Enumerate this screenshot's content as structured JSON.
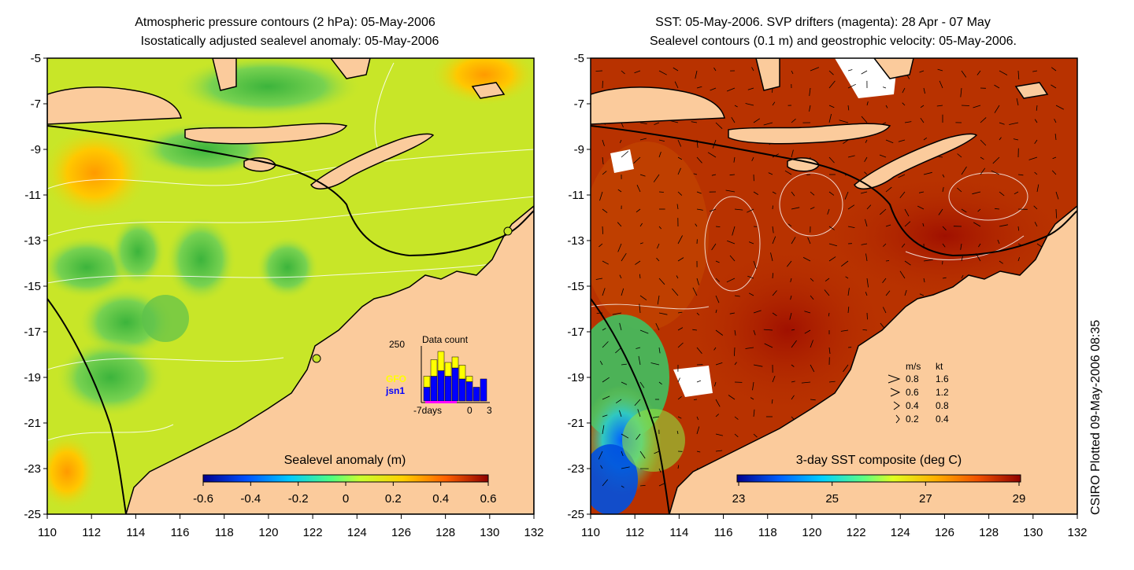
{
  "left_panel": {
    "title_line1": "Atmospheric pressure contours (2 hPa): 05-May-2006",
    "title_line2": "Isostatically adjusted sealevel anomaly: 05-May-2006",
    "colorbar_label": "Sealevel anomaly (m)",
    "colorbar_ticks": [
      "-0.6",
      "-0.4",
      "-0.2",
      "0",
      "0.2",
      "0.4",
      "0.6"
    ],
    "inset": {
      "title": "Data count",
      "y_max_label": "250",
      "legend_gfo": "GFO",
      "legend_jsn1": "jsn1",
      "x_labels": [
        "-7days",
        "0",
        "3"
      ],
      "gfo_color": "#ffff00",
      "jsn1_color": "#0000ff",
      "bars_jsn1": [
        0.25,
        0.45,
        0.55,
        0.45,
        0.6,
        0.4,
        0.35,
        0.25,
        0.4
      ],
      "bars_gfo": [
        0.2,
        0.3,
        0.35,
        0.25,
        0.2,
        0.25,
        0.1,
        0.0,
        0.0
      ]
    }
  },
  "right_panel": {
    "title_line1": "SST: 05-May-2006. SVP drifters (magenta): 28 Apr - 07 May",
    "title_line2": "Sealevel contours (0.1 m) and geostrophic velocity: 05-May-2006.",
    "colorbar_label": "3-day SST composite (deg C)",
    "colorbar_ticks": [
      "23",
      "25",
      "27",
      "29"
    ],
    "velocity_legend": {
      "header_ms": "m/s",
      "header_kt": "kt",
      "rows": [
        {
          "ms": "0.8",
          "kt": "1.6"
        },
        {
          "ms": "0.6",
          "kt": "1.2"
        },
        {
          "ms": "0.4",
          "kt": "0.8"
        },
        {
          "ms": "0.2",
          "kt": "0.4"
        }
      ]
    }
  },
  "axes": {
    "y_ticks": [
      "-5",
      "-7",
      "-9",
      "-11",
      "-13",
      "-15",
      "-17",
      "-19",
      "-21",
      "-23",
      "-25"
    ],
    "x_ticks": [
      "110",
      "112",
      "114",
      "116",
      "118",
      "120",
      "122",
      "124",
      "126",
      "128",
      "130",
      "132"
    ]
  },
  "credit": "CSIRO Plotted 09-May-2006 08:35",
  "colors": {
    "land": "#fbcb9c",
    "coast": "#000000",
    "sla_sea": "#c8e628",
    "sst_sea": "#b83200"
  }
}
